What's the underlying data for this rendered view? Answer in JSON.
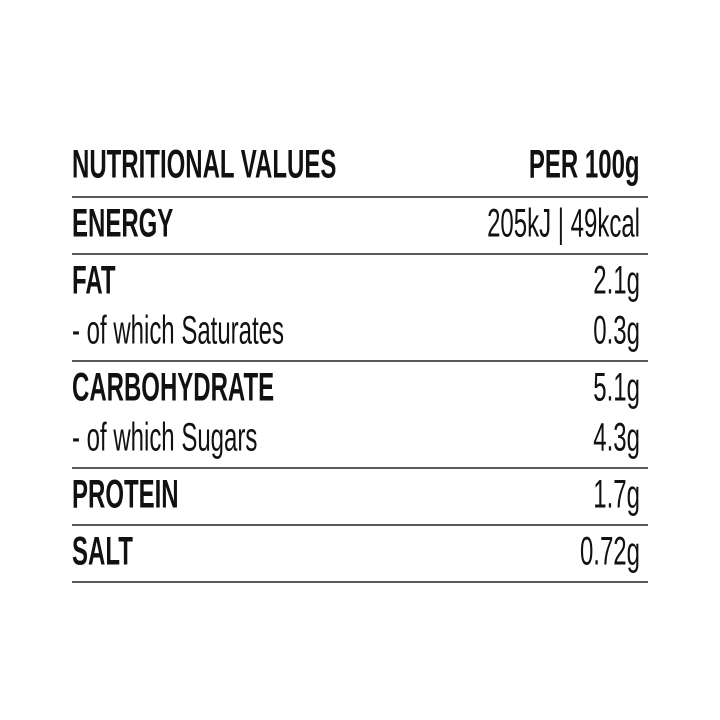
{
  "header": {
    "title": "NUTRITIONAL VALUES",
    "per": "PER 100g"
  },
  "sections": [
    {
      "rows": [
        {
          "label": "ENERGY",
          "value": "205kJ | 49kcal"
        }
      ]
    },
    {
      "rows": [
        {
          "label": "FAT",
          "value": "2.1g"
        },
        {
          "label": "- of which Saturates",
          "value": "0.3g"
        }
      ]
    },
    {
      "rows": [
        {
          "label": "CARBOHYDRATE",
          "value": "5.1g"
        },
        {
          "label": "- of which Sugars",
          "value": "4.3g"
        }
      ]
    },
    {
      "rows": [
        {
          "label": "PROTEIN",
          "value": "1.7g"
        }
      ]
    },
    {
      "rows": [
        {
          "label": "SALT",
          "value": "0.72g"
        }
      ]
    }
  ]
}
